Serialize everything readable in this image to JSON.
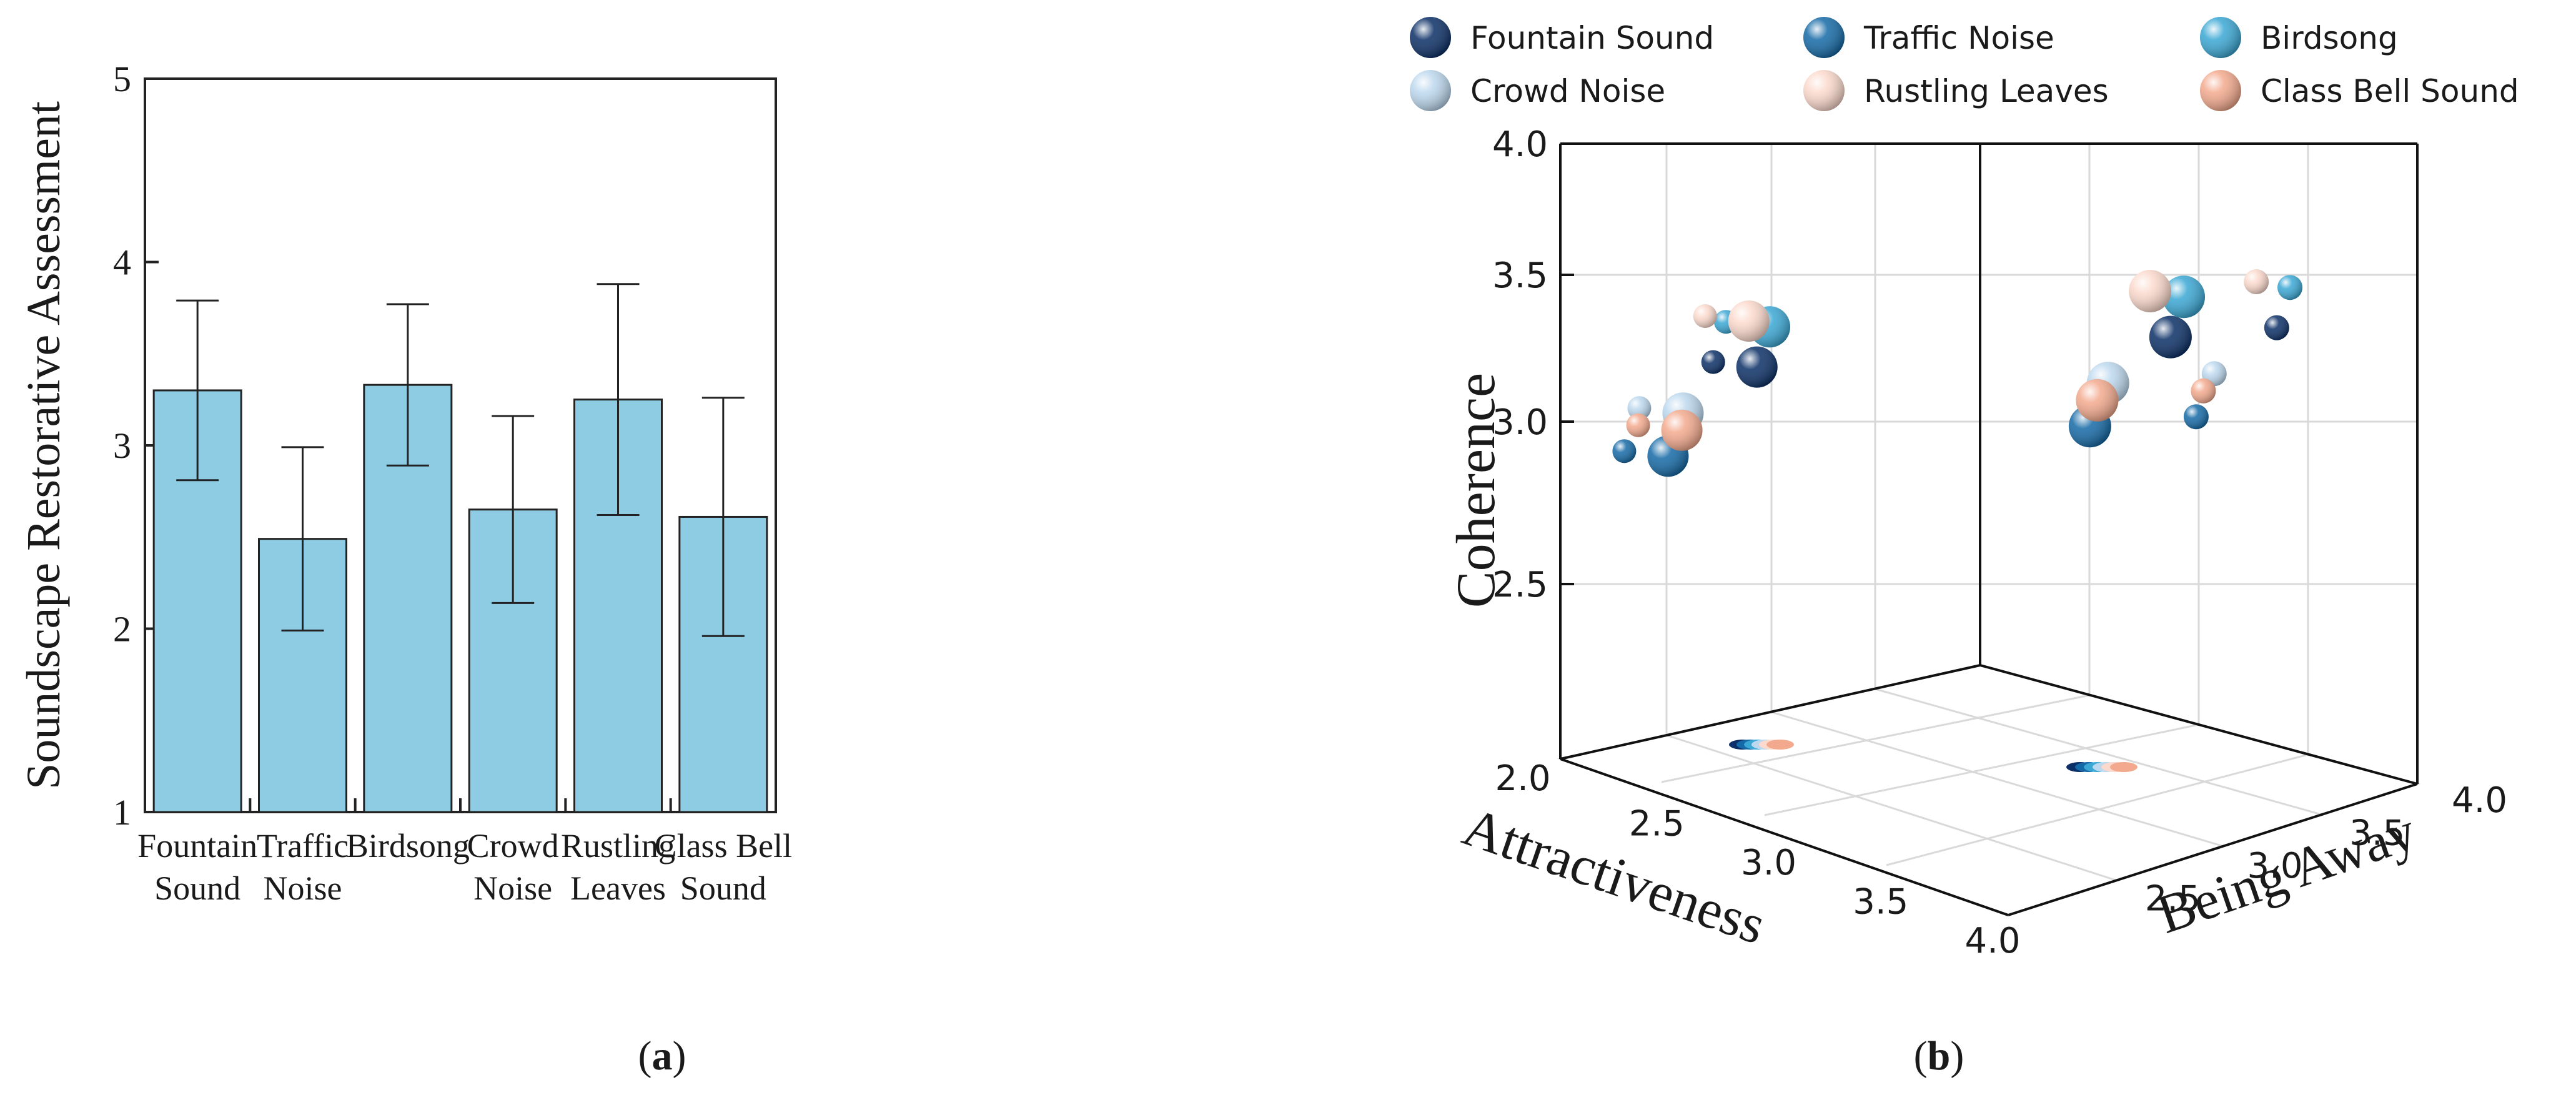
{
  "chart_data": [
    {
      "type": "bar",
      "panel_label": "a",
      "ylabel": "Soundscape Restorative Assessment",
      "ylim": [
        1,
        5
      ],
      "yticks": [
        "1",
        "2",
        "3",
        "4",
        "5"
      ],
      "categories": [
        {
          "line1": "Fountain",
          "line2": "Sound"
        },
        {
          "line1": "Traffic",
          "line2": "Noise"
        },
        {
          "line1": "Birdsong",
          "line2": ""
        },
        {
          "line1": "Crowd",
          "line2": "Noise"
        },
        {
          "line1": "Rustling",
          "line2": "Leaves"
        },
        {
          "line1": "Class Bell",
          "line2": "Sound"
        }
      ],
      "values": [
        3.3,
        2.49,
        3.33,
        2.65,
        3.25,
        2.61
      ],
      "error_low": [
        2.81,
        1.99,
        2.89,
        2.14,
        2.62,
        1.96
      ],
      "error_high": [
        3.79,
        2.99,
        3.77,
        3.16,
        3.88,
        3.26
      ],
      "bar_color": "#8ecce4"
    },
    {
      "type": "scatter3d",
      "panel_label": "b",
      "xlabel": "Attractiveness",
      "ylabel": "Being Away",
      "zlabel": "Coherence",
      "x_ticks": [
        "2.0",
        "2.5",
        "3.0",
        "3.5",
        "4.0"
      ],
      "y_ticks": [
        "2.5",
        "3.0",
        "3.5",
        "4.0"
      ],
      "z_ticks": [
        "2.5",
        "3.0",
        "3.5",
        "4.0"
      ],
      "series": [
        {
          "name": "Fountain Sound",
          "color": "#0b2f66",
          "x": 3.27,
          "y": 3.22,
          "z": 3.24
        },
        {
          "name": "Traffic Noise",
          "color": "#1469a6",
          "x": 2.5,
          "y": 2.55,
          "z": 2.93
        },
        {
          "name": "Birdsong",
          "color": "#3aa7d4",
          "x": 3.38,
          "y": 3.33,
          "z": 3.38
        },
        {
          "name": "Crowd Noise",
          "color": "#bcd8ee",
          "x": 2.63,
          "y": 2.7,
          "z": 3.08
        },
        {
          "name": "Rustling Leaves",
          "color": "#fbd9cc",
          "x": 3.2,
          "y": 3.05,
          "z": 3.4
        },
        {
          "name": "Class Bell Sound",
          "color": "#f3a98d",
          "x": 2.62,
          "y": 2.61,
          "z": 3.02
        }
      ]
    }
  ]
}
